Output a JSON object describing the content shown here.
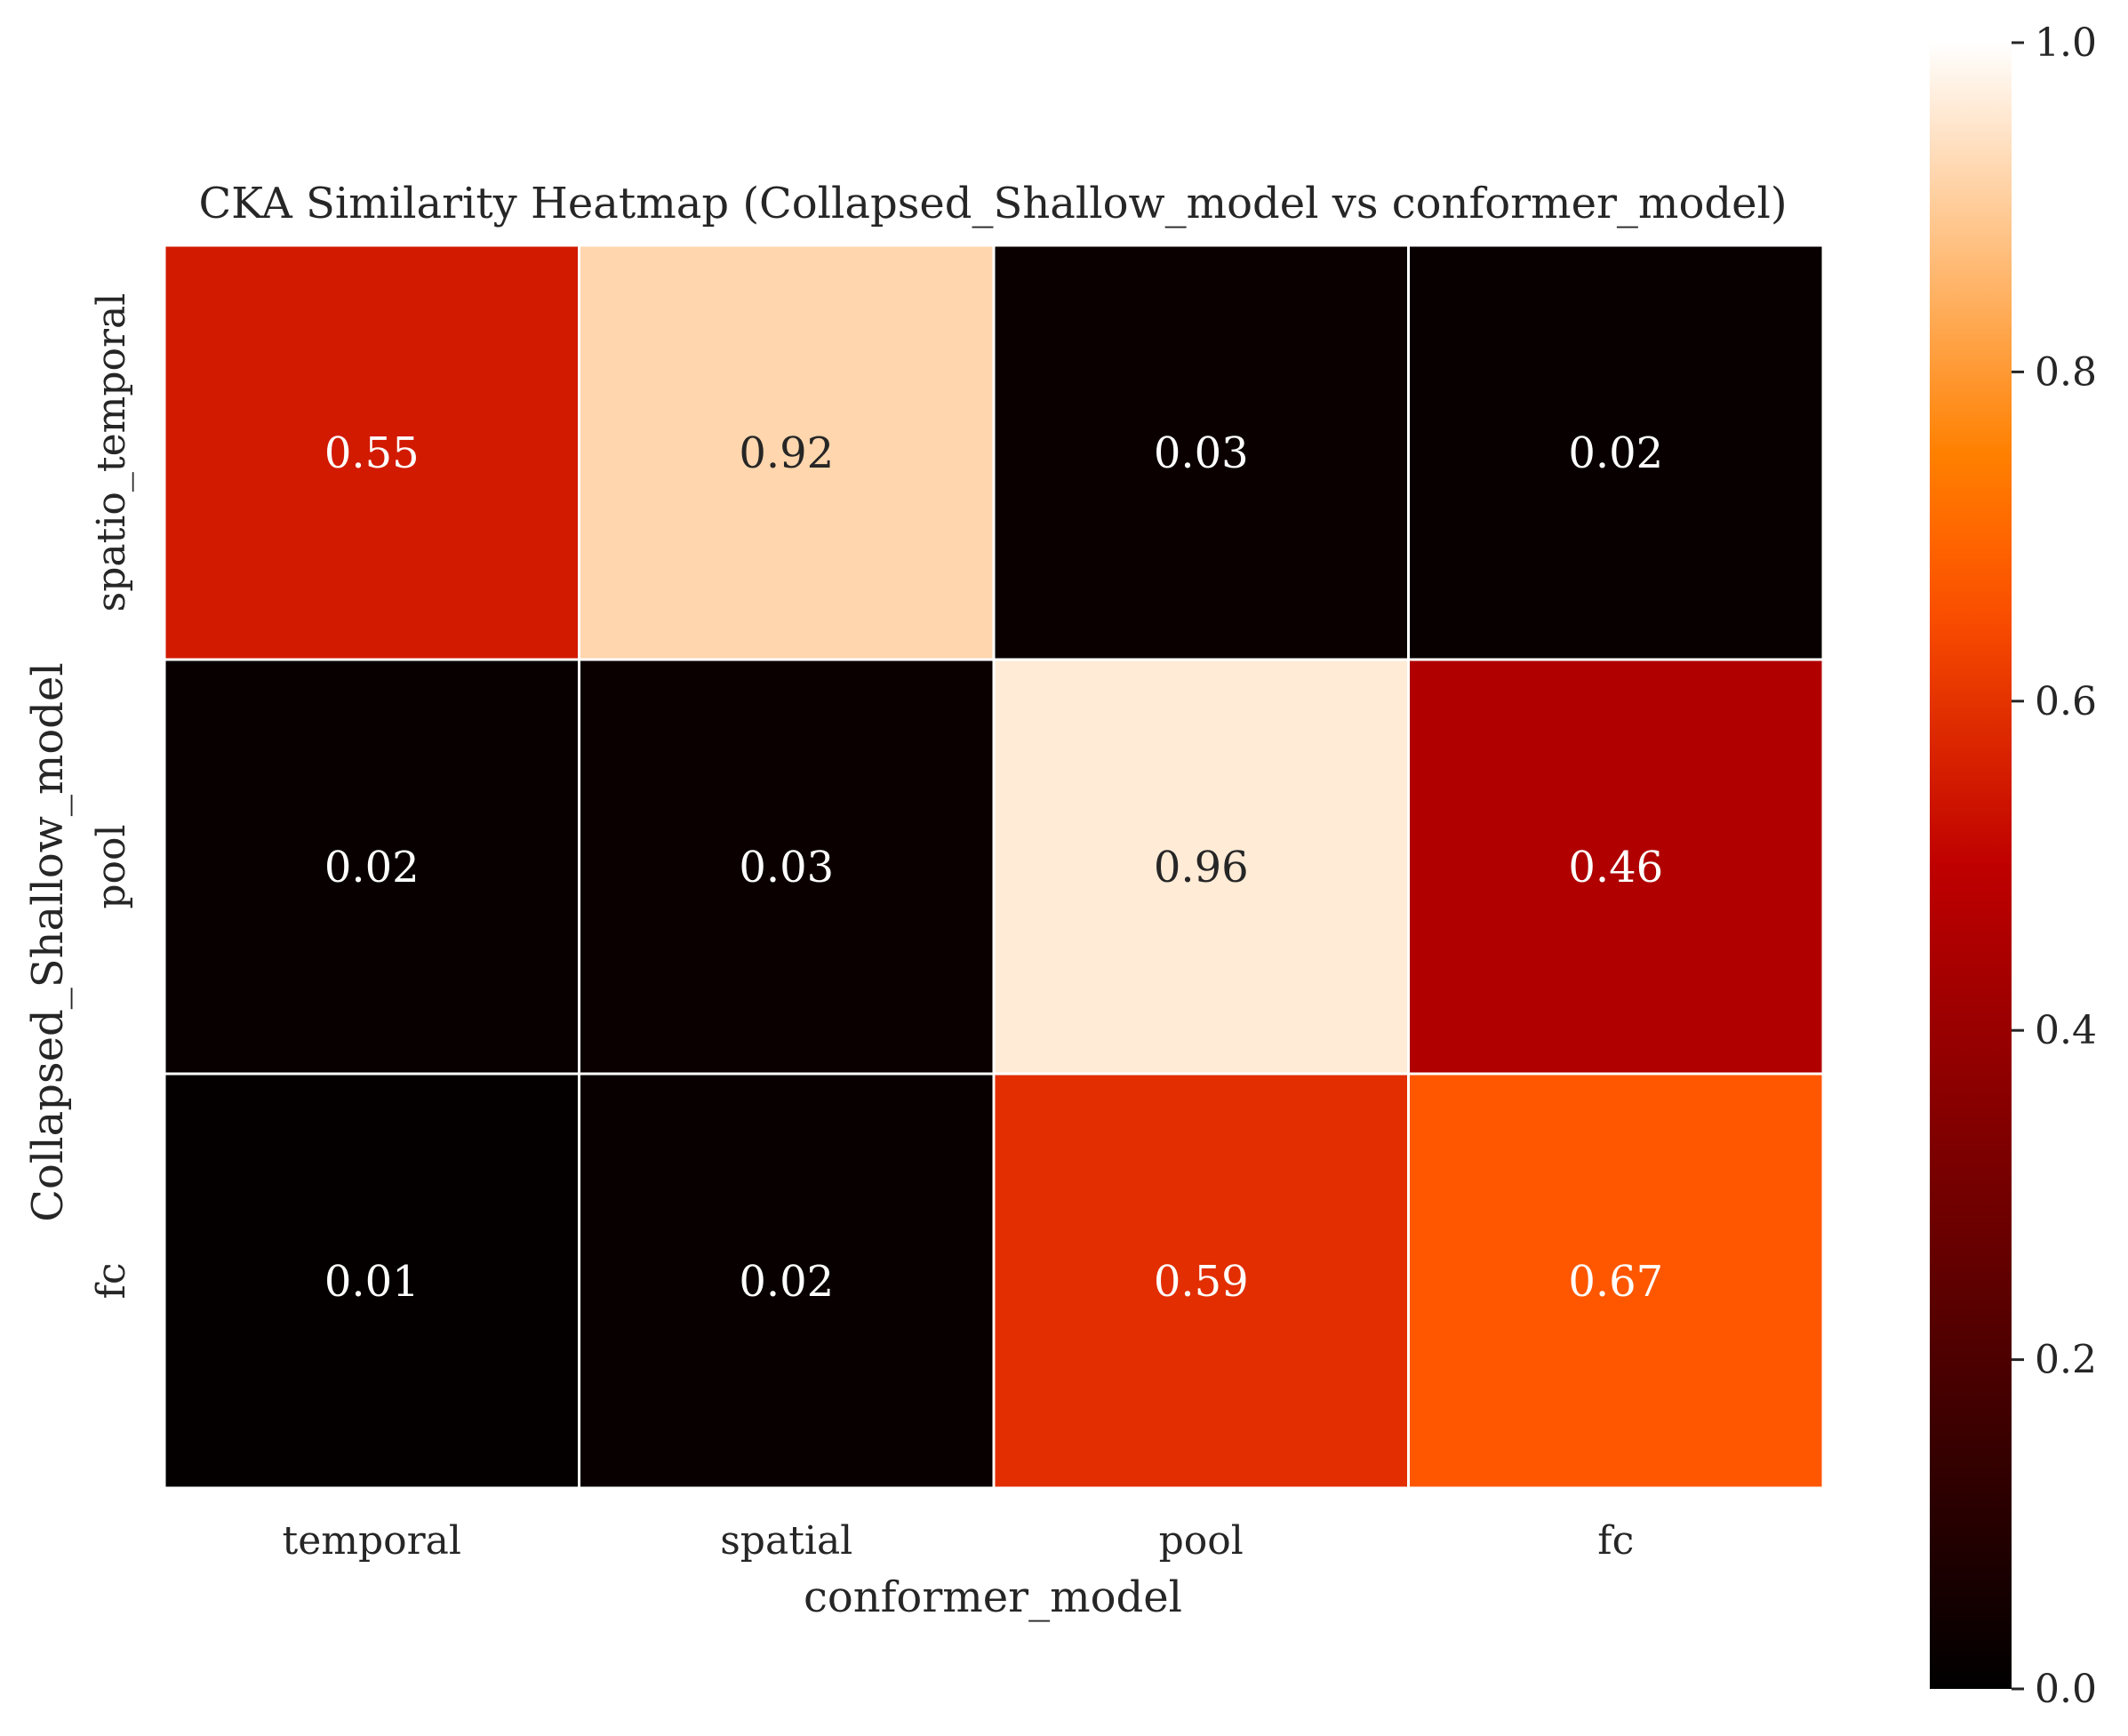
{
  "chart_data": {
    "type": "heatmap",
    "title": "CKA Similarity Heatmap (Collapsed_Shallow_model vs conformer_model)",
    "xlabel": "conformer_model",
    "ylabel": "Collapsed_Shallow_model",
    "x_categories": [
      "temporal",
      "spatial",
      "pool",
      "fc"
    ],
    "y_categories": [
      "spatio_temporal",
      "pool",
      "fc"
    ],
    "values": [
      [
        0.55,
        0.92,
        0.03,
        0.02
      ],
      [
        0.02,
        0.03,
        0.96,
        0.46
      ],
      [
        0.01,
        0.02,
        0.59,
        0.67
      ]
    ],
    "value_labels": [
      [
        "0.55",
        "0.92",
        "0.03",
        "0.02"
      ],
      [
        "0.02",
        "0.03",
        "0.96",
        "0.46"
      ],
      [
        "0.01",
        "0.02",
        "0.59",
        "0.67"
      ]
    ],
    "colormap": "gist_heat",
    "colorbar": {
      "range": [
        0.0,
        1.0
      ],
      "ticks": [
        0.0,
        0.2,
        0.4,
        0.6,
        0.8,
        1.0
      ],
      "tick_labels": [
        "0.0",
        "0.2",
        "0.4",
        "0.6",
        "0.8",
        "1.0"
      ]
    },
    "cell_border_color": "#ffffff"
  }
}
